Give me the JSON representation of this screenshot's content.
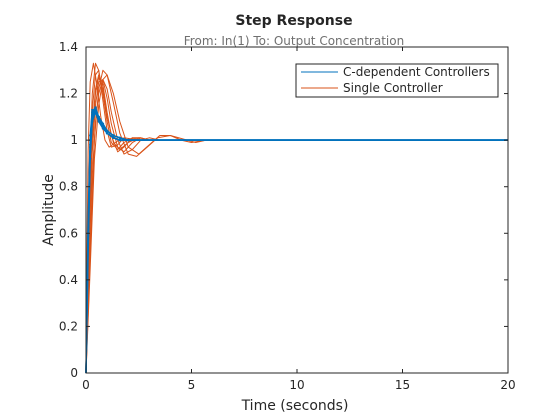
{
  "chart_data": {
    "type": "line",
    "title": "Step Response",
    "subtitle": "From: In(1)  To: Output Concentration",
    "xlabel": "Time (seconds)",
    "ylabel": "Amplitude",
    "xlim": [
      0,
      20
    ],
    "ylim": [
      0,
      1.4
    ],
    "xticks": [
      0,
      5,
      10,
      15,
      20
    ],
    "yticks": [
      0,
      0.2,
      0.4,
      0.6,
      0.8,
      1,
      1.2,
      1.4
    ],
    "grid": false,
    "legend_position": "top-right",
    "colors": {
      "c_dependent": "#0072BD",
      "single": "#D95319"
    },
    "series": [
      {
        "name": "C-dependent Controllers",
        "color": "#0072BD",
        "responses": [
          {
            "x": [
              0,
              0.1,
              0.2,
              0.3,
              0.45,
              0.6,
              0.8,
              1.0,
              1.3,
              1.6,
              2.0,
              2.5,
              3.0,
              20
            ],
            "y": [
              0,
              0.65,
              1.02,
              1.13,
              1.13,
              1.09,
              1.06,
              1.03,
              1.01,
              1.0,
              1.0,
              1.0,
              1.0,
              1.0
            ]
          },
          {
            "x": [
              0,
              0.1,
              0.2,
              0.3,
              0.45,
              0.6,
              0.8,
              1.0,
              1.3,
              1.6,
              2.0,
              2.5,
              3.0,
              20
            ],
            "y": [
              0,
              0.6,
              0.98,
              1.12,
              1.14,
              1.1,
              1.07,
              1.04,
              1.02,
              1.01,
              1.0,
              1.0,
              1.0,
              1.0
            ]
          },
          {
            "x": [
              0,
              0.1,
              0.2,
              0.3,
              0.45,
              0.6,
              0.8,
              1.0,
              1.3,
              1.6,
              2.0,
              2.5,
              3.0,
              20
            ],
            "y": [
              0,
              0.55,
              0.95,
              1.1,
              1.13,
              1.1,
              1.06,
              1.03,
              1.01,
              1.0,
              1.0,
              1.0,
              1.0,
              1.0
            ]
          },
          {
            "x": [
              0,
              0.1,
              0.2,
              0.3,
              0.45,
              0.6,
              0.8,
              1.0,
              1.3,
              1.6,
              2.0,
              2.5,
              3.0,
              20
            ],
            "y": [
              0,
              0.5,
              0.92,
              1.08,
              1.12,
              1.1,
              1.07,
              1.04,
              1.02,
              1.01,
              1.0,
              1.0,
              1.0,
              1.0
            ]
          },
          {
            "x": [
              0,
              0.1,
              0.2,
              0.3,
              0.45,
              0.6,
              0.8,
              1.0,
              1.3,
              1.6,
              2.0,
              2.5,
              3.0,
              20
            ],
            "y": [
              0,
              0.62,
              1.0,
              1.12,
              1.12,
              1.08,
              1.05,
              1.03,
              1.01,
              1.0,
              1.0,
              1.0,
              1.0,
              1.0
            ]
          },
          {
            "x": [
              0,
              0.1,
              0.2,
              0.3,
              0.45,
              0.6,
              0.8,
              1.0,
              1.3,
              1.6,
              2.0,
              2.5,
              3.0,
              20
            ],
            "y": [
              0,
              0.58,
              0.97,
              1.11,
              1.13,
              1.09,
              1.06,
              1.03,
              1.01,
              1.0,
              1.0,
              1.0,
              1.0,
              1.0
            ]
          }
        ]
      },
      {
        "name": "Single Controller",
        "color": "#D95319",
        "responses": [
          {
            "x": [
              0,
              0.15,
              0.3,
              0.45,
              0.6,
              0.8,
              1.0,
              1.2,
              1.5,
              1.8,
              2.2,
              2.6,
              3.0,
              3.5,
              20
            ],
            "y": [
              0.05,
              0.85,
              1.2,
              1.33,
              1.3,
              1.17,
              1.04,
              0.97,
              0.98,
              1.01,
              1.005,
              1.0,
              1.0,
              1.0,
              1.0
            ]
          },
          {
            "x": [
              0,
              0.15,
              0.3,
              0.45,
              0.6,
              0.8,
              1.0,
              1.2,
              1.5,
              1.8,
              2.2,
              2.6,
              3.0,
              3.5,
              20
            ],
            "y": [
              0.03,
              0.75,
              1.13,
              1.28,
              1.3,
              1.2,
              1.08,
              0.99,
              0.96,
              0.99,
              1.01,
              1.0,
              1.0,
              1.0,
              1.0
            ]
          },
          {
            "x": [
              0,
              0.15,
              0.3,
              0.45,
              0.6,
              0.8,
              1.0,
              1.2,
              1.5,
              1.8,
              2.2,
              2.6,
              3.0,
              3.5,
              20
            ],
            "y": [
              0.02,
              0.65,
              1.05,
              1.22,
              1.28,
              1.24,
              1.12,
              1.02,
              0.95,
              0.97,
              1.01,
              1.01,
              1.0,
              1.0,
              1.0
            ]
          },
          {
            "x": [
              0,
              0.15,
              0.3,
              0.45,
              0.6,
              0.8,
              1.0,
              1.2,
              1.5,
              1.8,
              2.2,
              2.6,
              3.0,
              3.5,
              20
            ],
            "y": [
              0.0,
              0.55,
              0.95,
              1.15,
              1.25,
              1.26,
              1.18,
              1.07,
              0.97,
              0.95,
              0.99,
              1.01,
              1.0,
              1.0,
              1.0
            ]
          },
          {
            "x": [
              0,
              0.15,
              0.3,
              0.45,
              0.6,
              0.8,
              1.0,
              1.2,
              1.5,
              1.8,
              2.2,
              2.6,
              3.0,
              3.5,
              20
            ],
            "y": [
              0.0,
              0.45,
              0.85,
              1.08,
              1.2,
              1.26,
              1.22,
              1.12,
              1.0,
              0.94,
              0.96,
              1.0,
              1.01,
              1.0,
              1.0
            ]
          },
          {
            "x": [
              0,
              0.2,
              0.4,
              0.6,
              0.8,
              1.0,
              1.3,
              1.6,
              2.0,
              2.4,
              2.9,
              3.4,
              4.0,
              4.6,
              5.2,
              5.7,
              20
            ],
            "y": [
              0.0,
              0.5,
              1.0,
              1.22,
              1.3,
              1.28,
              1.16,
              1.03,
              0.94,
              0.93,
              0.97,
              1.01,
              1.02,
              1.005,
              0.99,
              1.0,
              1.0
            ]
          },
          {
            "x": [
              0,
              0.2,
              0.4,
              0.6,
              0.8,
              1.0,
              1.3,
              1.6,
              2.0,
              2.5,
              3.0,
              3.5,
              4.0,
              4.5,
              5.0,
              5.7,
              20
            ],
            "y": [
              0.0,
              0.45,
              0.92,
              1.15,
              1.26,
              1.28,
              1.2,
              1.08,
              0.97,
              0.94,
              0.98,
              1.02,
              1.02,
              1.0,
              0.99,
              1.0,
              1.0
            ]
          },
          {
            "x": [
              0,
              0.1,
              0.2,
              0.35,
              0.5,
              0.7,
              0.9,
              1.1,
              1.4,
              1.7,
              2.0,
              2.5,
              3.0,
              20
            ],
            "y": [
              0.1,
              0.95,
              1.25,
              1.33,
              1.25,
              1.1,
              1.0,
              0.97,
              0.99,
              1.01,
              1.0,
              1.0,
              1.0,
              1.0
            ]
          },
          {
            "x": [
              0,
              0.15,
              0.3,
              0.45,
              0.6,
              0.8,
              1.0,
              1.3,
              1.6,
              2.0,
              2.5,
              3.0,
              20
            ],
            "y": [
              0.0,
              0.6,
              1.0,
              1.2,
              1.27,
              1.22,
              1.1,
              0.99,
              0.96,
              0.99,
              1.01,
              1.0,
              1.0
            ]
          }
        ]
      }
    ]
  }
}
